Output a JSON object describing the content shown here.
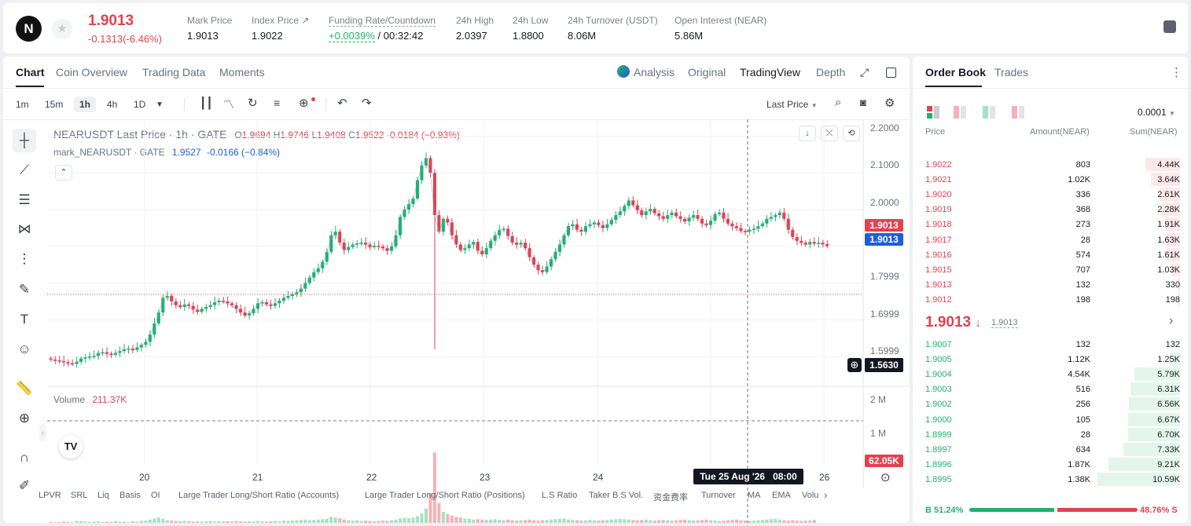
{
  "header": {
    "logo_letter": "N",
    "last_price": "1.9013",
    "change": "-0.1313(-6.46%)",
    "stats": [
      {
        "label": "Mark Price",
        "value": "1.9013"
      },
      {
        "label": "Index Price ↗",
        "value": "1.9022"
      },
      {
        "label": "Funding Rate/Countdown",
        "value_green": "+0.0039%",
        "value_rest": "/ 00:32:42"
      },
      {
        "label": "24h High",
        "value": "2.0397"
      },
      {
        "label": "24h Low",
        "value": "1.8800"
      },
      {
        "label": "24h Turnover (USDT)",
        "value": "8.06M"
      },
      {
        "label": "Open Interest (NEAR)",
        "value": "5.86M"
      }
    ]
  },
  "chart_tabs": [
    "Chart",
    "Coin Overview",
    "Trading Data",
    "Moments"
  ],
  "chart_view_tabs": {
    "analysis": "Analysis",
    "original": "Original",
    "tradingview": "TradingView",
    "depth": "Depth"
  },
  "toolbar": {
    "intervals": [
      "1m",
      "15m",
      "1h",
      "4h",
      "1D"
    ],
    "active_interval": "1h",
    "price_type": "Last Price"
  },
  "legend": {
    "main": "NEARUSDT Last Price · 1h · GATE",
    "o_label": "O",
    "o": "1.9694",
    "h_label": "H",
    "h": "1.9746",
    "l_label": "L",
    "l": "1.9408",
    "c_label": "C",
    "c": "1.9522",
    "chg": "-0.0184 (−0.93%)",
    "mark_name": "mark_NEARUSDT · GATE",
    "mark_val": "1.9527",
    "mark_chg": "-0.0166 (−0.84%)",
    "volume_label": "Volume",
    "volume_val": "211.37K"
  },
  "y_axis": [
    "2.2000",
    "2.1000",
    "2.0000",
    "1.7999",
    "1.6999",
    "1.5999"
  ],
  "price_tags": {
    "last": "1.9013",
    "mark": "1.9013",
    "crosshair": "1.5630",
    "volume": "62.05K"
  },
  "volume_axis": [
    "2 M",
    "1 M"
  ],
  "x_axis": [
    "20",
    "21",
    "22",
    "23",
    "24",
    "26"
  ],
  "crosshair_time": "Tue 25 Aug '26   08:00",
  "indicators": [
    "LPVR",
    "SRL",
    "Liq",
    "Basis",
    "OI",
    "Large Trader Long/Short Ratio (Accounts)",
    "Large Trader Long/Short Ratio (Positions)",
    "L.S Ratio",
    "Taker B.S Vol.",
    "资金费率",
    "Turnover",
    "MA",
    "EMA",
    "Volu"
  ],
  "chart_data": {
    "type": "candlestick",
    "pair": "NEARUSDT",
    "interval": "1h",
    "ylim": [
      1.55,
      2.22
    ],
    "candles_close": [
      1.592,
      1.59,
      1.588,
      1.585,
      1.582,
      1.58,
      1.586,
      1.595,
      1.598,
      1.6,
      1.602,
      1.61,
      1.612,
      1.608,
      1.605,
      1.61,
      1.615,
      1.62,
      1.622,
      1.618,
      1.625,
      1.632,
      1.64,
      1.66,
      1.69,
      1.72,
      1.76,
      1.765,
      1.75,
      1.74,
      1.735,
      1.742,
      1.738,
      1.728,
      1.722,
      1.73,
      1.735,
      1.74,
      1.748,
      1.752,
      1.75,
      1.745,
      1.74,
      1.73,
      1.72,
      1.712,
      1.718,
      1.73,
      1.745,
      1.748,
      1.742,
      1.738,
      1.745,
      1.752,
      1.76,
      1.765,
      1.77,
      1.775,
      1.785,
      1.8,
      1.815,
      1.83,
      1.84,
      1.858,
      1.885,
      1.93,
      1.94,
      1.91,
      1.89,
      1.898,
      1.905,
      1.908,
      1.91,
      1.905,
      1.898,
      1.902,
      1.9,
      1.895,
      1.888,
      1.9,
      1.93,
      1.98,
      2.0,
      2.015,
      2.03,
      2.08,
      2.12,
      2.14,
      2.1,
      1.985,
      1.94,
      1.975,
      1.965,
      1.93,
      1.905,
      1.89,
      1.895,
      1.905,
      1.912,
      1.888,
      1.878,
      1.895,
      1.915,
      1.93,
      1.945,
      1.948,
      1.928,
      1.91,
      1.905,
      1.91,
      1.895,
      1.87,
      1.85,
      1.835,
      1.83,
      1.845,
      1.865,
      1.885,
      1.905,
      1.93,
      1.955,
      1.96,
      1.945,
      1.94,
      1.955,
      1.96,
      1.965,
      1.958,
      1.95,
      1.96,
      1.972,
      1.985,
      1.995,
      2.01,
      2.025,
      2.012,
      1.998,
      1.985,
      1.995,
      2.002,
      1.99,
      1.982,
      1.975,
      1.985,
      1.992,
      1.982,
      1.975,
      1.968,
      1.978,
      1.985,
      1.975,
      1.962,
      1.958,
      1.97,
      1.988,
      1.992,
      1.975,
      1.962,
      1.955,
      1.95,
      1.942,
      1.94,
      1.945,
      1.948,
      1.955,
      1.962,
      1.975,
      1.98,
      1.985,
      1.992,
      1.975,
      1.945,
      1.925,
      1.915,
      1.91,
      1.905,
      1.912,
      1.908,
      1.91,
      1.906,
      1.901
    ],
    "volume": [
      0.05,
      0.04,
      0.05,
      0.06,
      0.05,
      0.04,
      0.08,
      0.07,
      0.06,
      0.05,
      0.06,
      0.07,
      0.05,
      0.06,
      0.05,
      0.07,
      0.06,
      0.06,
      0.05,
      0.07,
      0.06,
      0.08,
      0.09,
      0.12,
      0.15,
      0.18,
      0.14,
      0.1,
      0.09,
      0.08,
      0.07,
      0.08,
      0.07,
      0.06,
      0.07,
      0.06,
      0.07,
      0.08,
      0.06,
      0.07,
      0.06,
      0.07,
      0.06,
      0.08,
      0.07,
      0.06,
      0.07,
      0.06,
      0.08,
      0.07,
      0.06,
      0.07,
      0.08,
      0.07,
      0.09,
      0.08,
      0.09,
      0.1,
      0.11,
      0.12,
      0.1,
      0.11,
      0.12,
      0.13,
      0.14,
      0.2,
      0.18,
      0.16,
      0.12,
      0.1,
      0.09,
      0.1,
      0.08,
      0.09,
      0.08,
      0.07,
      0.08,
      0.09,
      0.08,
      0.1,
      0.12,
      0.15,
      0.17,
      0.16,
      0.18,
      0.22,
      0.3,
      0.45,
      0.9,
      2.1,
      0.6,
      0.35,
      0.28,
      0.24,
      0.2,
      0.18,
      0.15,
      0.14,
      0.12,
      0.13,
      0.12,
      0.11,
      0.12,
      0.13,
      0.11,
      0.1,
      0.12,
      0.1,
      0.09,
      0.1,
      0.11,
      0.12,
      0.1,
      0.09,
      0.1,
      0.11,
      0.12,
      0.13,
      0.14,
      0.15,
      0.12,
      0.11,
      0.1,
      0.09,
      0.1,
      0.11,
      0.1,
      0.09,
      0.1,
      0.11,
      0.12,
      0.13,
      0.14,
      0.13,
      0.12,
      0.11,
      0.1,
      0.11,
      0.12,
      0.1,
      0.09,
      0.1,
      0.11,
      0.1,
      0.09,
      0.1,
      0.11,
      0.12,
      0.1,
      0.09,
      0.1,
      0.11,
      0.12,
      0.1,
      0.09,
      0.08,
      0.09,
      0.1,
      0.11,
      0.12,
      0.1,
      0.09,
      0.08,
      0.09,
      0.1,
      0.11,
      0.12,
      0.13,
      0.14,
      0.12,
      0.1,
      0.09,
      0.1,
      0.09,
      0.08,
      0.09,
      0.1,
      0.11
    ]
  },
  "orderbook": {
    "tabs": [
      "Order Book",
      "Trades"
    ],
    "precision": "0.0001",
    "headers": {
      "price": "Price",
      "amount": "Amount(NEAR)",
      "sum": "Sum(NEAR)"
    },
    "asks": [
      {
        "price": "1.9022",
        "amount": "803",
        "sum": "4.44K",
        "depth": 0.42
      },
      {
        "price": "1.9021",
        "amount": "1.02K",
        "sum": "3.64K",
        "depth": 0.35
      },
      {
        "price": "1.9020",
        "amount": "336",
        "sum": "2.61K",
        "depth": 0.25
      },
      {
        "price": "1.9019",
        "amount": "368",
        "sum": "2.28K",
        "depth": 0.22
      },
      {
        "price": "1.9018",
        "amount": "273",
        "sum": "1.91K",
        "depth": 0.18
      },
      {
        "price": "1.9017",
        "amount": "28",
        "sum": "1.63K",
        "depth": 0.16
      },
      {
        "price": "1.9016",
        "amount": "574",
        "sum": "1.61K",
        "depth": 0.16
      },
      {
        "price": "1.9015",
        "amount": "707",
        "sum": "1.03K",
        "depth": 0.1
      },
      {
        "price": "1.9013",
        "amount": "132",
        "sum": "330",
        "depth": 0.03
      },
      {
        "price": "1.9012",
        "amount": "198",
        "sum": "198",
        "depth": 0.02
      }
    ],
    "mid_price": "1.9013",
    "mid_mark": "1.9013",
    "bids": [
      {
        "price": "1.9007",
        "amount": "132",
        "sum": "132",
        "depth": 0.01
      },
      {
        "price": "1.9005",
        "amount": "1.12K",
        "sum": "1.25K",
        "depth": 0.12
      },
      {
        "price": "1.9004",
        "amount": "4.54K",
        "sum": "5.79K",
        "depth": 0.55
      },
      {
        "price": "1.9003",
        "amount": "516",
        "sum": "6.31K",
        "depth": 0.6
      },
      {
        "price": "1.9002",
        "amount": "256",
        "sum": "6.56K",
        "depth": 0.62
      },
      {
        "price": "1.9000",
        "amount": "105",
        "sum": "6.67K",
        "depth": 0.63
      },
      {
        "price": "1.8999",
        "amount": "28",
        "sum": "6.70K",
        "depth": 0.63
      },
      {
        "price": "1.8997",
        "amount": "634",
        "sum": "7.33K",
        "depth": 0.69
      },
      {
        "price": "1.8996",
        "amount": "1.87K",
        "sum": "9.21K",
        "depth": 0.87
      },
      {
        "price": "1.8995",
        "amount": "1.38K",
        "sum": "10.59K",
        "depth": 1.0
      }
    ],
    "buy_ratio": "B 51.24%",
    "sell_ratio": "48.76% S",
    "buy_fraction": 0.5124
  },
  "colors": {
    "up": "#20b26c",
    "down": "#e0434f",
    "mark": "#1f5fd6"
  }
}
